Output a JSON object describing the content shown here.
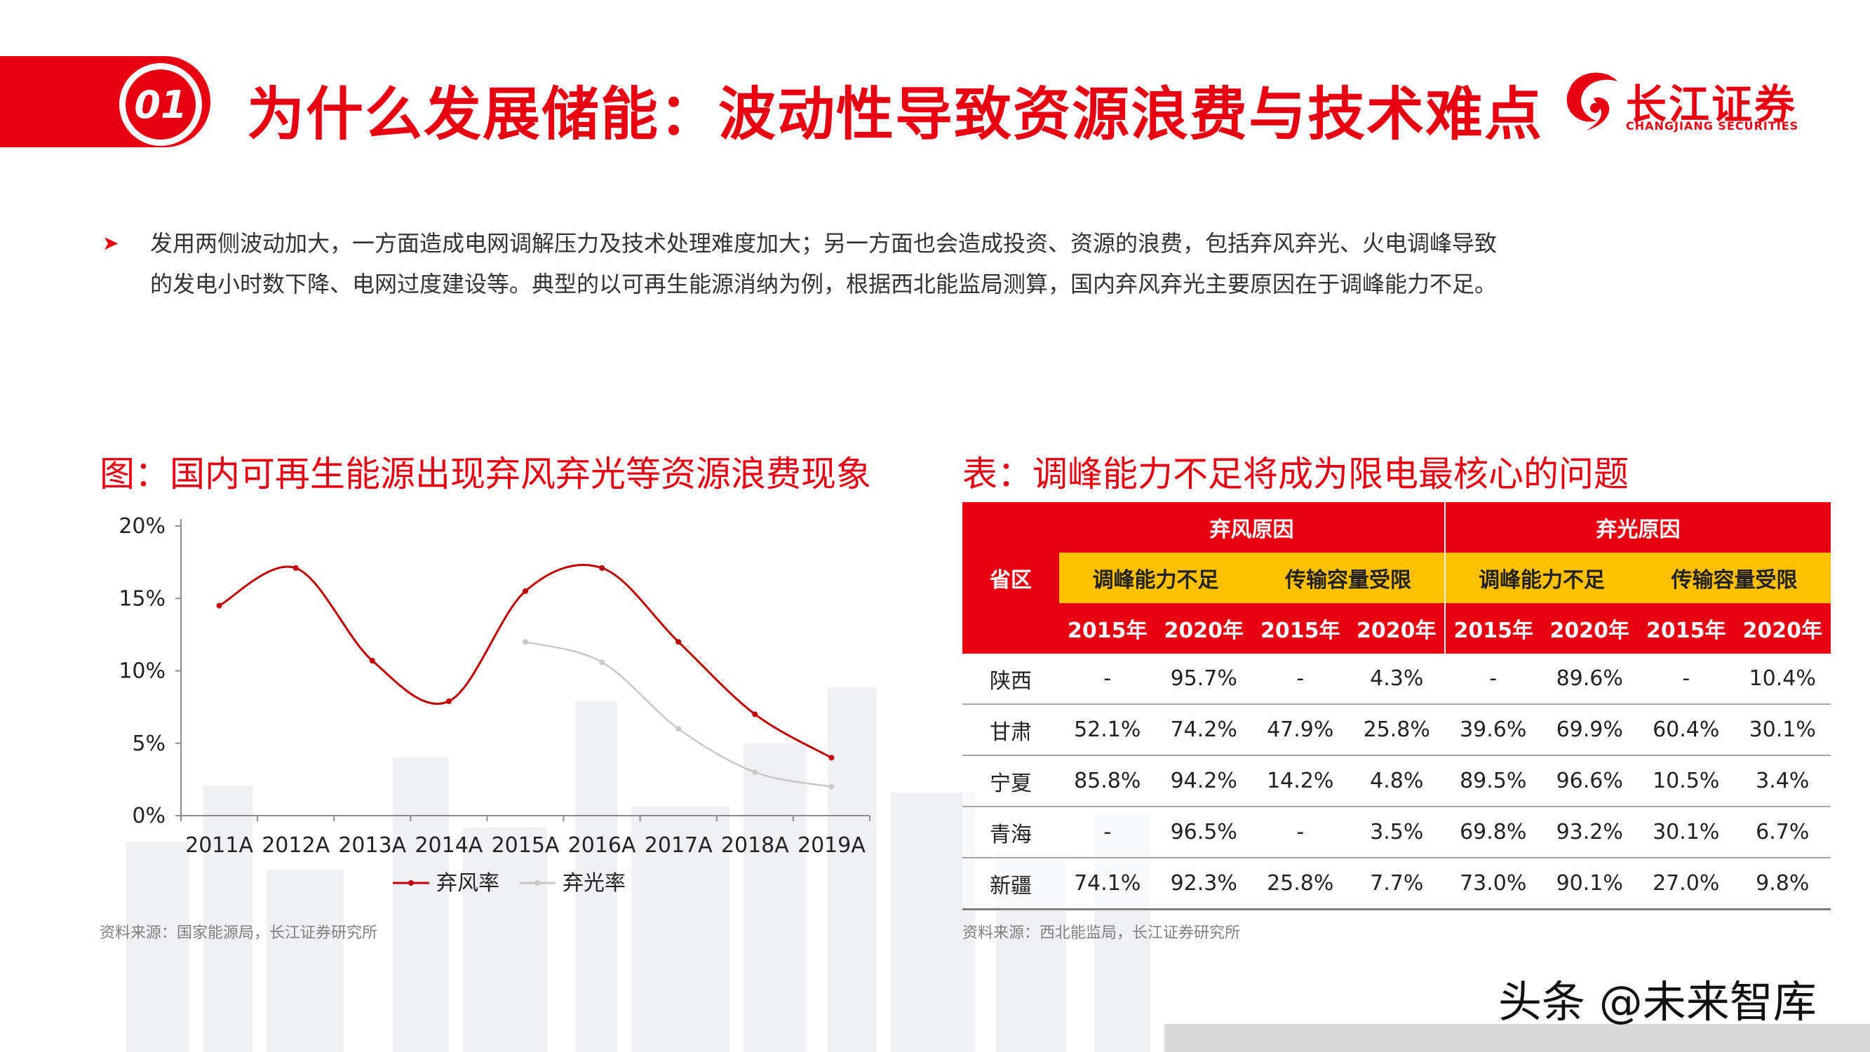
{
  "header": {
    "badge_number": "01",
    "title": "为什么发展储能：波动性导致资源浪费与技术难点",
    "logo_name": "长江证券",
    "logo_sub": "CHANGJIANG SECURITIES"
  },
  "bullet": {
    "line1": "发用两侧波动加大，一方面造成电网调解压力及技术处理难度加大；另一方面也会造成投资、资源的浪费，包括弃风弃光、火电调峰导致",
    "line2": "的发电小时数下降、电网过度建设等。典型的以可再生能源消纳为例，根据西北能监局测算，国内弃风弃光主要原因在于调峰能力不足。"
  },
  "left_section": {
    "title": "图：国内可再生能源出现弃风弃光等资源浪费现象",
    "source": "资料来源：国家能源局，长江证券研究所"
  },
  "chart_data": {
    "type": "line",
    "categories": [
      "2011A",
      "2012A",
      "2013A",
      "2014A",
      "2015A",
      "2016A",
      "2017A",
      "2018A",
      "2019A"
    ],
    "y_tick_labels": [
      "0%",
      "5%",
      "10%",
      "15%",
      "20%"
    ],
    "ylim": [
      0,
      20
    ],
    "series": [
      {
        "name": "弃风率",
        "color": "#c00000",
        "values": [
          14.5,
          17.1,
          10.7,
          7.9,
          15.5,
          17.1,
          12.0,
          7.0,
          4.0
        ]
      },
      {
        "name": "弃光率",
        "color": "#c8c8c8",
        "values": [
          null,
          null,
          null,
          null,
          12.0,
          10.6,
          6.0,
          3.0,
          2.0
        ]
      }
    ],
    "legend_position": "bottom",
    "grid": false
  },
  "right_section": {
    "title": "表：调峰能力不足将成为限电最核心的问题",
    "source": "资料来源：西北能监局，长江证券研究所"
  },
  "table": {
    "province_header": "省区",
    "groups": [
      "弃风原因",
      "弃光原因"
    ],
    "subgroups": [
      "调峰能力不足",
      "传输容量受限",
      "调峰能力不足",
      "传输容量受限"
    ],
    "years": [
      "2015年",
      "2020年",
      "2015年",
      "2020年",
      "2015年",
      "2020年",
      "2015年",
      "2020年"
    ],
    "rows": [
      {
        "province": "陕西",
        "values": [
          "-",
          "95.7%",
          "-",
          "4.3%",
          "-",
          "89.6%",
          "-",
          "10.4%"
        ]
      },
      {
        "province": "甘肃",
        "values": [
          "52.1%",
          "74.2%",
          "47.9%",
          "25.8%",
          "39.6%",
          "69.9%",
          "60.4%",
          "30.1%"
        ]
      },
      {
        "province": "宁夏",
        "values": [
          "85.8%",
          "94.2%",
          "14.2%",
          "4.8%",
          "89.5%",
          "96.6%",
          "10.5%",
          "3.4%"
        ]
      },
      {
        "province": "青海",
        "values": [
          "-",
          "96.5%",
          "-",
          "3.5%",
          "69.8%",
          "93.2%",
          "30.1%",
          "6.7%"
        ]
      },
      {
        "province": "新疆",
        "values": [
          "74.1%",
          "92.3%",
          "25.8%",
          "7.7%",
          "73.0%",
          "90.1%",
          "27.0%",
          "9.8%"
        ]
      }
    ]
  },
  "watermark": "头条 @未来智库",
  "colors": {
    "brand_red": "#e60012",
    "header_yellow": "#ffc000",
    "wind_series": "#c00000",
    "solar_series": "#c8c8c8"
  }
}
